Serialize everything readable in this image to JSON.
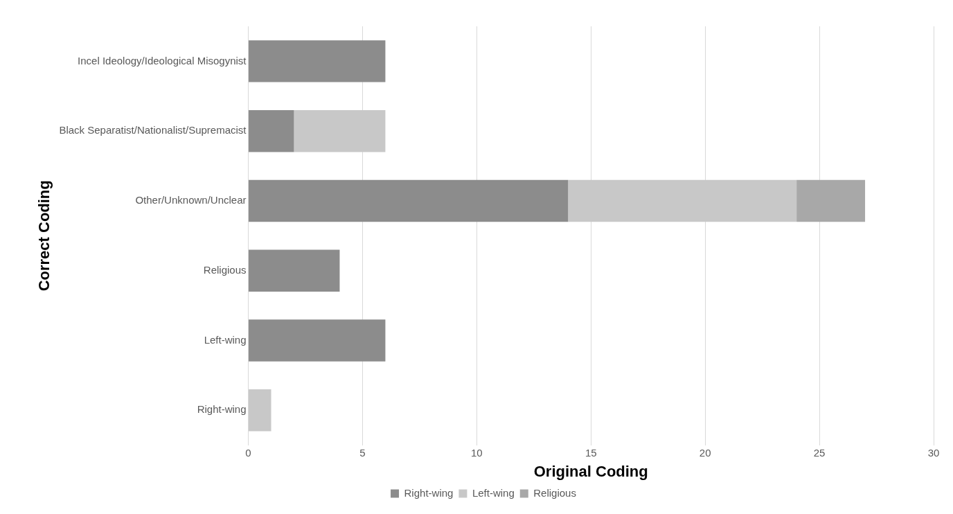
{
  "chart_data": {
    "type": "bar",
    "orientation": "horizontal",
    "stacked": true,
    "xlabel": "Original Coding",
    "ylabel": "Correct Coding",
    "categories": [
      "Incel Ideology/Ideological Misogynist",
      "Black Separatist/Nationalist/Supremacist",
      "Other/Unknown/Unclear",
      "Religious",
      "Left-wing",
      "Right-wing"
    ],
    "series": [
      {
        "name": "Right-wing",
        "color": "#8c8c8c",
        "values": [
          6,
          2,
          14,
          4,
          6,
          0
        ]
      },
      {
        "name": "Left-wing",
        "color": "#c8c8c8",
        "values": [
          0,
          4,
          10,
          0,
          0,
          1
        ]
      },
      {
        "name": "Religious",
        "color": "#a8a8a8",
        "values": [
          0,
          0,
          3,
          0,
          0,
          0
        ]
      }
    ],
    "xlim": [
      0,
      30
    ],
    "xticks": [
      0,
      5,
      10,
      15,
      20,
      25,
      30
    ],
    "grid": "x",
    "legend": "bottom"
  }
}
